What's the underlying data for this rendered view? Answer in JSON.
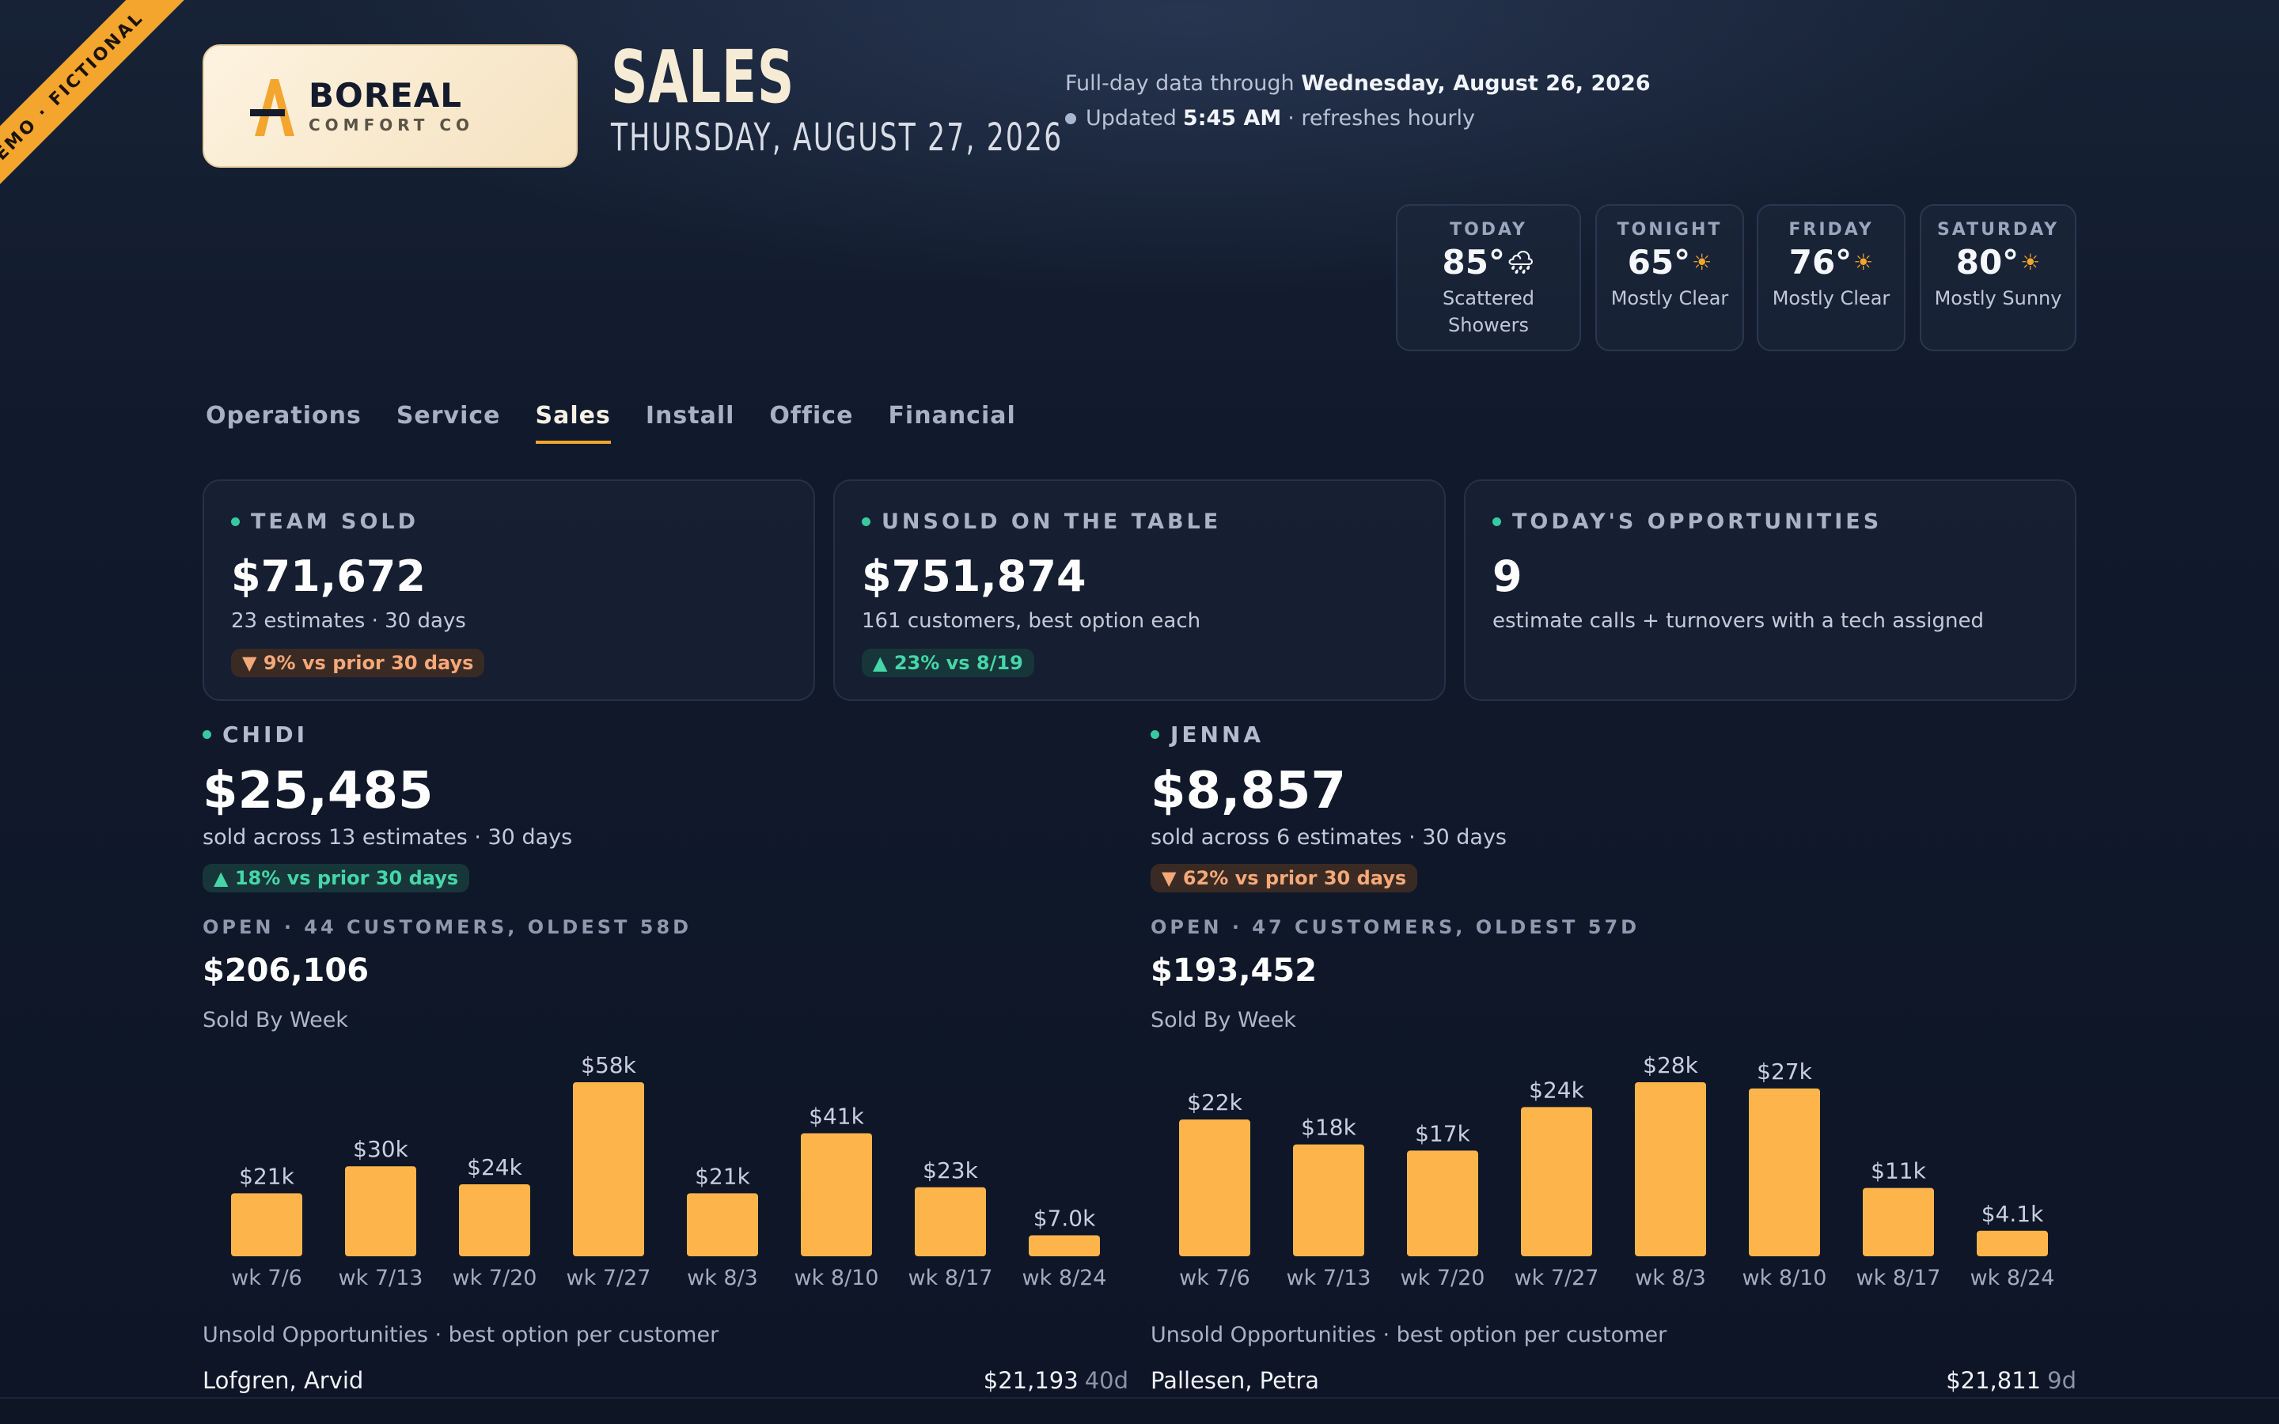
{
  "banner": "DEMO · FICTIONAL",
  "brand": {
    "name": "BOREAL",
    "sub": "COMFORT CO"
  },
  "header": {
    "title": "SALES",
    "date": "THURSDAY, AUGUST 27, 2026",
    "data_through_prefix": "Full-day data through",
    "data_through_date": "Wednesday, August 26, 2026",
    "updated_prefix": "Updated",
    "updated_time": "5:45 AM",
    "updated_suffix": "· refreshes hourly"
  },
  "weather": [
    {
      "day": "TODAY",
      "temp": "85°",
      "icon": "rain-cloud-icon",
      "glyph": "🌧",
      "desc": "Scattered Showers"
    },
    {
      "day": "TONIGHT",
      "temp": "65°",
      "icon": "sun-icon",
      "glyph": "☀",
      "desc": "Mostly Clear"
    },
    {
      "day": "FRIDAY",
      "temp": "76°",
      "icon": "sun-icon",
      "glyph": "☀",
      "desc": "Mostly Clear"
    },
    {
      "day": "SATURDAY",
      "temp": "80°",
      "icon": "sun-icon",
      "glyph": "☀",
      "desc": "Mostly Sunny"
    }
  ],
  "tabs": [
    "Operations",
    "Service",
    "Sales",
    "Install",
    "Office",
    "Financial"
  ],
  "active_tab": "Sales",
  "kpis": [
    {
      "label": "TEAM SOLD",
      "value": "$71,672",
      "sub": "23 estimates · 30 days",
      "change": "9% vs prior 30 days",
      "direction": "down"
    },
    {
      "label": "UNSOLD ON THE TABLE",
      "value": "$751,874",
      "sub": "161 customers, best option each",
      "change": "23% vs 8/19",
      "direction": "up"
    },
    {
      "label": "TODAY'S OPPORTUNITIES",
      "value": "9",
      "sub": "estimate calls + turnovers with a tech assigned",
      "change": "",
      "direction": ""
    }
  ],
  "people": [
    {
      "name": "CHIDI",
      "value": "$25,485",
      "sub": "sold across 13 estimates · 30 days",
      "change": "18% vs prior 30 days",
      "direction": "up",
      "open_label": "OPEN · 44 CUSTOMERS, OLDEST 58D",
      "open_value": "$206,106",
      "chart_title": "Sold By Week",
      "unsold_title": "Unsold Opportunities · best option per customer",
      "unsold": [
        {
          "name": "Lofgren, Arvid",
          "amount": "$21,193",
          "age": "40d"
        }
      ]
    },
    {
      "name": "JENNA",
      "value": "$8,857",
      "sub": "sold across 6 estimates · 30 days",
      "change": "62% vs prior 30 days",
      "direction": "down",
      "open_label": "OPEN · 47 CUSTOMERS, OLDEST 57D",
      "open_value": "$193,452",
      "chart_title": "Sold By Week",
      "unsold_title": "Unsold Opportunities · best option per customer",
      "unsold": [
        {
          "name": "Pallesen, Petra",
          "amount": "$21,811",
          "age": "9d"
        }
      ]
    }
  ],
  "colors": {
    "accent": "#f4a52e",
    "bar": "#fdb54b",
    "up": "#46d6a8",
    "down": "#f5a878",
    "live": "#38c9a0"
  },
  "chart_data": [
    {
      "type": "bar",
      "title": "Sold By Week",
      "categories": [
        "wk 7/6",
        "wk 7/13",
        "wk 7/20",
        "wk 7/27",
        "wk 8/3",
        "wk 8/10",
        "wk 8/17",
        "wk 8/24"
      ],
      "values": [
        21000,
        30000,
        24000,
        58000,
        21000,
        41000,
        23000,
        7000
      ],
      "labels": [
        "$21k",
        "$30k",
        "$24k",
        "$58k",
        "$21k",
        "$41k",
        "$23k",
        "$7.0k"
      ],
      "grid": false
    },
    {
      "type": "bar",
      "title": "Sold By Week",
      "categories": [
        "wk 7/6",
        "wk 7/13",
        "wk 7/20",
        "wk 7/27",
        "wk 8/3",
        "wk 8/10",
        "wk 8/17",
        "wk 8/24"
      ],
      "values": [
        22000,
        18000,
        17000,
        24000,
        28000,
        27000,
        11000,
        4100
      ],
      "labels": [
        "$22k",
        "$18k",
        "$17k",
        "$24k",
        "$28k",
        "$27k",
        "$11k",
        "$4.1k"
      ],
      "grid": false
    }
  ]
}
